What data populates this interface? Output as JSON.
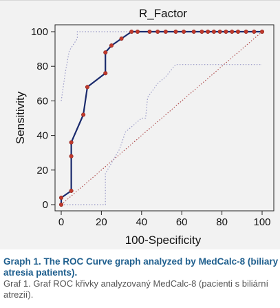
{
  "chart_data": {
    "type": "line",
    "title": "R_Factor",
    "xlabel": "100-Specificity",
    "ylabel": "Sensitivity",
    "xlim": [
      0,
      100
    ],
    "ylim": [
      0,
      100
    ],
    "x_ticks": [
      0,
      20,
      40,
      60,
      80,
      100
    ],
    "y_ticks": [
      0,
      20,
      40,
      60,
      80,
      100
    ],
    "grid": false,
    "series": [
      {
        "role": "roc_curve",
        "color": "#1a2a6c",
        "marker_color": "#c0392b",
        "points": [
          [
            0,
            0
          ],
          [
            0,
            4
          ],
          [
            5,
            8
          ],
          [
            5,
            28
          ],
          [
            5,
            36
          ],
          [
            11,
            52
          ],
          [
            13,
            68
          ],
          [
            22,
            76
          ],
          [
            22,
            88
          ],
          [
            25,
            92
          ],
          [
            30,
            96
          ],
          [
            35,
            100
          ],
          [
            38,
            100
          ],
          [
            44,
            100
          ],
          [
            48,
            100
          ],
          [
            52,
            100
          ],
          [
            57,
            100
          ],
          [
            61,
            100
          ],
          [
            66,
            100
          ],
          [
            70,
            100
          ],
          [
            73,
            100
          ],
          [
            76,
            100
          ],
          [
            79,
            100
          ],
          [
            82,
            100
          ],
          [
            85,
            100
          ],
          [
            88,
            100
          ],
          [
            92,
            100
          ],
          [
            96,
            100
          ],
          [
            100,
            100
          ]
        ]
      },
      {
        "role": "upper_confidence_bound",
        "color": "#9a9ac8",
        "style": "dotted",
        "points": [
          [
            0,
            60
          ],
          [
            2,
            76
          ],
          [
            4,
            89
          ],
          [
            8,
            96
          ],
          [
            8,
            100
          ],
          [
            12,
            100
          ],
          [
            100,
            100
          ]
        ]
      },
      {
        "role": "lower_confidence_bound",
        "color": "#9a9ac8",
        "style": "dotted",
        "points": [
          [
            0,
            0
          ],
          [
            22,
            0
          ],
          [
            22,
            18
          ],
          [
            29,
            32
          ],
          [
            32,
            42
          ],
          [
            40,
            50
          ],
          [
            42,
            50
          ],
          [
            43,
            62
          ],
          [
            48,
            70
          ],
          [
            52,
            74
          ],
          [
            57,
            81
          ],
          [
            100,
            81
          ]
        ]
      },
      {
        "role": "reference_diagonal",
        "color": "#b05050",
        "style": "dotted",
        "points": [
          [
            0,
            0
          ],
          [
            100,
            100
          ]
        ]
      }
    ]
  },
  "caption": {
    "english": "Graph 1. The ROC Curve graph analyzed by MedCalc-8 (biliary atresia patients).",
    "czech": "Graf 1. Graf ROC křivky analyzovaný MedCalc-8 (pacienti s biliární atrezií)."
  }
}
